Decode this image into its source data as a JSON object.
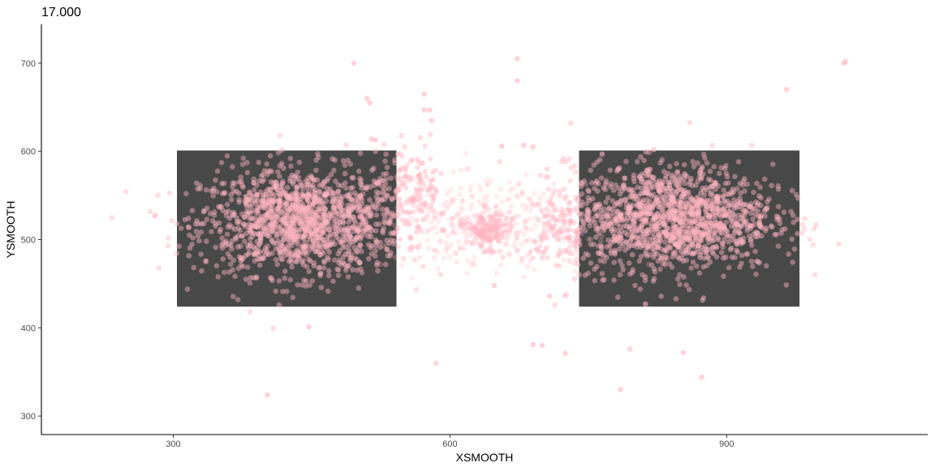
{
  "chart_data": {
    "type": "scatter",
    "title": "17.000",
    "xlabel": "XSMOOTH",
    "ylabel": "YSMOOTH",
    "xlim": [
      157,
      1118
    ],
    "ylim": [
      279,
      744
    ],
    "xticks": [
      300,
      600,
      900
    ],
    "yticks": [
      300,
      400,
      500,
      600,
      700
    ],
    "grid": false,
    "colors": {
      "point": "#ffb6c1",
      "rect": "#484848",
      "axis": "#000000",
      "tick_text": "#4d4d4d"
    },
    "rectangles": [
      {
        "x0": 304,
        "x1": 542,
        "y0": 424,
        "y1": 601
      },
      {
        "x0": 740,
        "x1": 979,
        "y0": 424,
        "y1": 601
      }
    ],
    "clusters": [
      {
        "cx": 440,
        "cy": 520,
        "sx": 55,
        "sy": 30,
        "n": 1400,
        "alpha": 0.45
      },
      {
        "cx": 840,
        "cy": 525,
        "sx": 55,
        "sy": 30,
        "n": 1400,
        "alpha": 0.45
      },
      {
        "cx": 640,
        "cy": 515,
        "sx": 55,
        "sy": 25,
        "n": 320,
        "alpha": 0.25
      },
      {
        "cx": 640,
        "cy": 510,
        "sx": 12,
        "sy": 10,
        "n": 120,
        "alpha": 0.5
      },
      {
        "cx": 560,
        "cy": 560,
        "sx": 18,
        "sy": 25,
        "n": 120,
        "alpha": 0.45
      },
      {
        "cx": 720,
        "cy": 510,
        "sx": 15,
        "sy": 30,
        "n": 100,
        "alpha": 0.45
      }
    ],
    "points": [
      {
        "x": 496,
        "y": 700
      },
      {
        "x": 673,
        "y": 705
      },
      {
        "x": 673,
        "y": 680
      },
      {
        "x": 1027,
        "y": 700
      },
      {
        "x": 1029,
        "y": 702
      },
      {
        "x": 965,
        "y": 670
      },
      {
        "x": 510,
        "y": 660
      },
      {
        "x": 513,
        "y": 655
      },
      {
        "x": 572,
        "y": 665
      },
      {
        "x": 572,
        "y": 647
      },
      {
        "x": 578,
        "y": 647
      },
      {
        "x": 580,
        "y": 635
      },
      {
        "x": 515,
        "y": 614
      },
      {
        "x": 519,
        "y": 613
      },
      {
        "x": 447,
        "y": 401
      },
      {
        "x": 585,
        "y": 360
      },
      {
        "x": 402,
        "y": 324
      },
      {
        "x": 690,
        "y": 381
      },
      {
        "x": 700,
        "y": 380
      },
      {
        "x": 725,
        "y": 371
      },
      {
        "x": 785,
        "y": 330
      },
      {
        "x": 795,
        "y": 376
      },
      {
        "x": 853,
        "y": 372
      },
      {
        "x": 873,
        "y": 344
      },
      {
        "x": 648,
        "y": 448
      },
      {
        "x": 708,
        "y": 436
      },
      {
        "x": 812,
        "y": 427
      },
      {
        "x": 821,
        "y": 602
      },
      {
        "x": 765,
        "y": 597
      },
      {
        "x": 680,
        "y": 607
      },
      {
        "x": 656,
        "y": 606
      },
      {
        "x": 690,
        "y": 605
      }
    ]
  }
}
